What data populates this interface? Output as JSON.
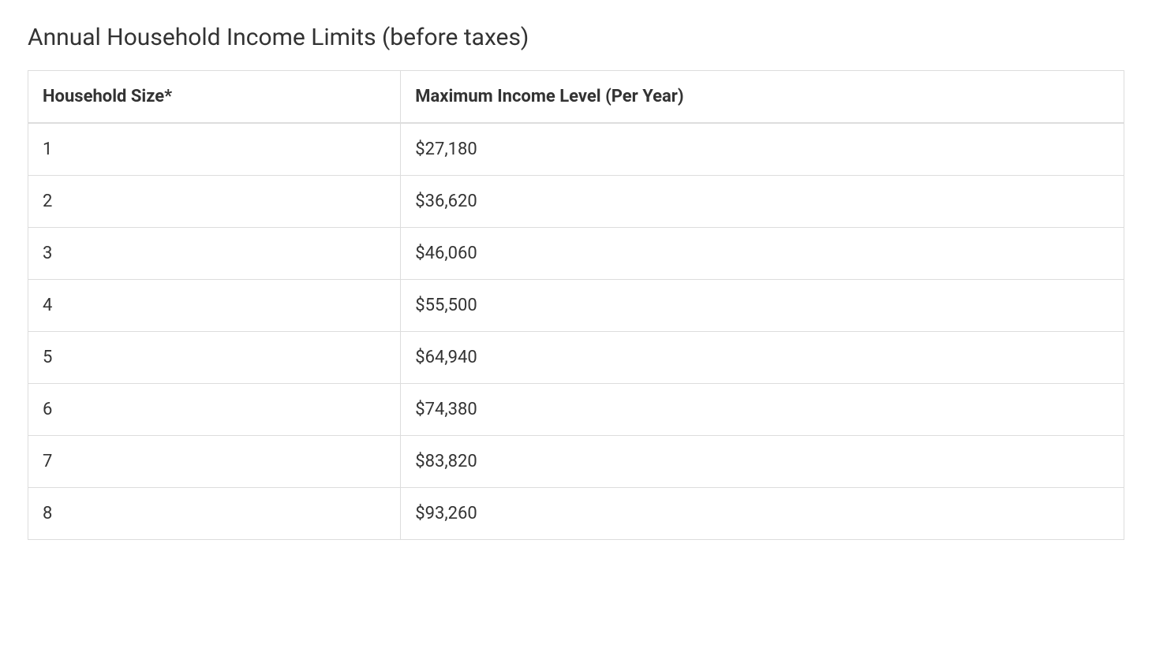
{
  "title": "Annual Household Income Limits (before taxes)",
  "table": {
    "type": "table",
    "columns": [
      {
        "label": "Household Size*",
        "width_pct": 34,
        "align": "left"
      },
      {
        "label": "Maximum Income Level (Per Year)",
        "width_pct": 66,
        "align": "left"
      }
    ],
    "rows": [
      [
        "1",
        "$27,180"
      ],
      [
        "2",
        "$36,620"
      ],
      [
        "3",
        "$46,060"
      ],
      [
        "4",
        "$55,500"
      ],
      [
        "5",
        "$64,940"
      ],
      [
        "6",
        "$74,380"
      ],
      [
        "7",
        "$83,820"
      ],
      [
        "8",
        "$93,260"
      ]
    ],
    "border_color": "#dddddd",
    "header_font_weight": 700,
    "header_fontsize": 22,
    "cell_fontsize": 22,
    "text_color": "#333333",
    "background_color": "#ffffff"
  }
}
